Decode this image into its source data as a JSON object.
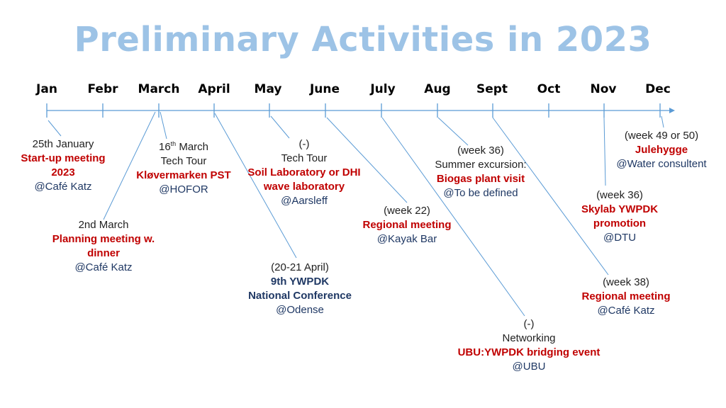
{
  "title": "Preliminary Activities in 2023",
  "months": [
    "Jan",
    "Febr",
    "March",
    "April",
    "May",
    "June",
    "July",
    "Aug",
    "Sept",
    "Oct",
    "Nov",
    "Dec"
  ],
  "events": [
    {
      "date": "25th January",
      "title": "Start-up meeting 2023",
      "title_lines": [
        "Start-up meeting",
        "2023"
      ],
      "location": "@Café Katz"
    },
    {
      "date": "2nd March",
      "title": "Planning meeting w. dinner",
      "title_lines": [
        "Planning meeting w.",
        "dinner"
      ],
      "location": "@Café Katz"
    },
    {
      "date_day": "16",
      "date_sup": "th",
      "date_month": " March",
      "type": "Tech Tour",
      "title": "Kløvermarken PST",
      "location": "@HOFOR"
    },
    {
      "date": "(20-21 April)",
      "title": "9th YWPDK National Conference",
      "title_lines": [
        "9th YWPDK",
        "National Conference"
      ],
      "location": "@Odense"
    },
    {
      "date": "(-)",
      "type": "Tech Tour",
      "title": "Soil Laboratory or DHI wave laboratory",
      "title_lines": [
        "Soil Laboratory or DHI",
        "wave laboratory"
      ],
      "location": "@Aarsleff"
    },
    {
      "date": "(week 22)",
      "title": "Regional meeting",
      "location": "@Kayak Bar"
    },
    {
      "date": "(-)",
      "type": "Networking",
      "title": "UBU:YWPDK bridging event",
      "location": "@UBU"
    },
    {
      "date": "(week 36)",
      "type": "Summer excursion:",
      "title": "Biogas plant visit",
      "location": "@To be defined"
    },
    {
      "date": "(week 38)",
      "title": "Regional meeting",
      "location": "@Café Katz"
    },
    {
      "date": "(week 36)",
      "title": "Skylab YWPDK promotion",
      "title_lines": [
        "Skylab YWPDK",
        "promotion"
      ],
      "location": "@DTU"
    },
    {
      "date": "(week 49 or 50)",
      "title": "Julehygge",
      "location": "@Water consultent"
    }
  ],
  "colors": {
    "title": "#9dc3e6",
    "axis": "#5b9bd5",
    "highlight": "#c00000",
    "location": "#1f3864"
  }
}
